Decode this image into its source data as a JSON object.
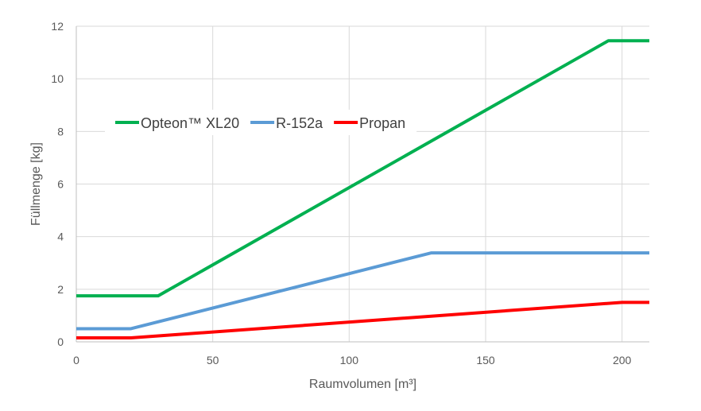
{
  "chart_data": {
    "type": "line",
    "xlabel": "Raumvolumen [m³]",
    "ylabel": "Füllmenge [kg]",
    "xlim": [
      0,
      210
    ],
    "ylim": [
      0,
      12
    ],
    "xticks": [
      0,
      50,
      100,
      150,
      200
    ],
    "yticks": [
      0,
      2,
      4,
      6,
      8,
      10,
      12
    ],
    "grid": true,
    "legend_position": "upper-left inside plot",
    "series": [
      {
        "name": "Opteon™ XL20",
        "color": "#00b050",
        "x": [
          0,
          30,
          195,
          210
        ],
        "y": [
          1.75,
          1.75,
          11.45,
          11.45
        ]
      },
      {
        "name": "R-152a",
        "color": "#5b9bd5",
        "x": [
          0,
          20,
          130,
          210
        ],
        "y": [
          0.5,
          0.5,
          3.38,
          3.38
        ]
      },
      {
        "name": "Propan",
        "color": "#ff0000",
        "x": [
          0,
          20,
          200,
          210
        ],
        "y": [
          0.15,
          0.15,
          1.5,
          1.5
        ]
      }
    ]
  }
}
